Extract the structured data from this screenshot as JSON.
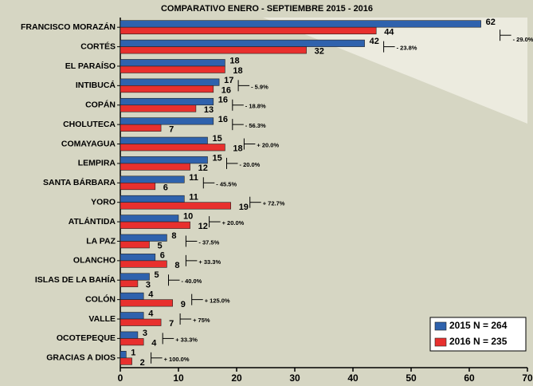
{
  "chart_data": {
    "type": "hbar",
    "title": "COMPARATIVO ENERO - SEPTIEMBRE 2015 - 2016",
    "categories": [
      "FRANCISCO MORAZÁN",
      "CORTÉS",
      "EL PARAÍSO",
      "INTIBUCÁ",
      "COPÁN",
      "CHOLUTECA",
      "COMAYAGUA",
      "LEMPIRA",
      "SANTA BÁRBARA",
      "YORO",
      "ATLÁNTIDA",
      "LA PAZ",
      "OLANCHO",
      "ISLAS DE LA BAHÍA",
      "COLÓN",
      "VALLE",
      "OCOTEPEQUE",
      "GRACIAS A DIOS"
    ],
    "series": [
      {
        "name": "2015 N = 264",
        "color": "#2f62ad",
        "values": [
          62,
          42,
          18,
          17,
          16,
          16,
          15,
          15,
          11,
          11,
          10,
          8,
          6,
          5,
          4,
          4,
          3,
          1
        ]
      },
      {
        "name": "2016 N = 235",
        "color": "#e8302e",
        "values": [
          44,
          32,
          18,
          16,
          13,
          7,
          18,
          12,
          6,
          19,
          12,
          5,
          8,
          3,
          9,
          7,
          4,
          2
        ]
      }
    ],
    "annotations": [
      "- 29.0%",
      "- 23.8%",
      null,
      "- 5.9%",
      "- 18.8%",
      "- 56.3%",
      "+ 20.0%",
      "- 20.0%",
      "- 45.5%",
      "+ 72.7%",
      "+ 20.0%",
      "- 37.5%",
      "+ 33.3%",
      "- 40.0%",
      "+ 125.0%",
      "+ 75%",
      "+ 33.3%",
      "+ 100.0%"
    ],
    "xlim": [
      0,
      70
    ],
    "xticks": [
      0,
      10,
      20,
      30,
      40,
      50,
      60,
      70
    ],
    "legend": "lower right"
  }
}
